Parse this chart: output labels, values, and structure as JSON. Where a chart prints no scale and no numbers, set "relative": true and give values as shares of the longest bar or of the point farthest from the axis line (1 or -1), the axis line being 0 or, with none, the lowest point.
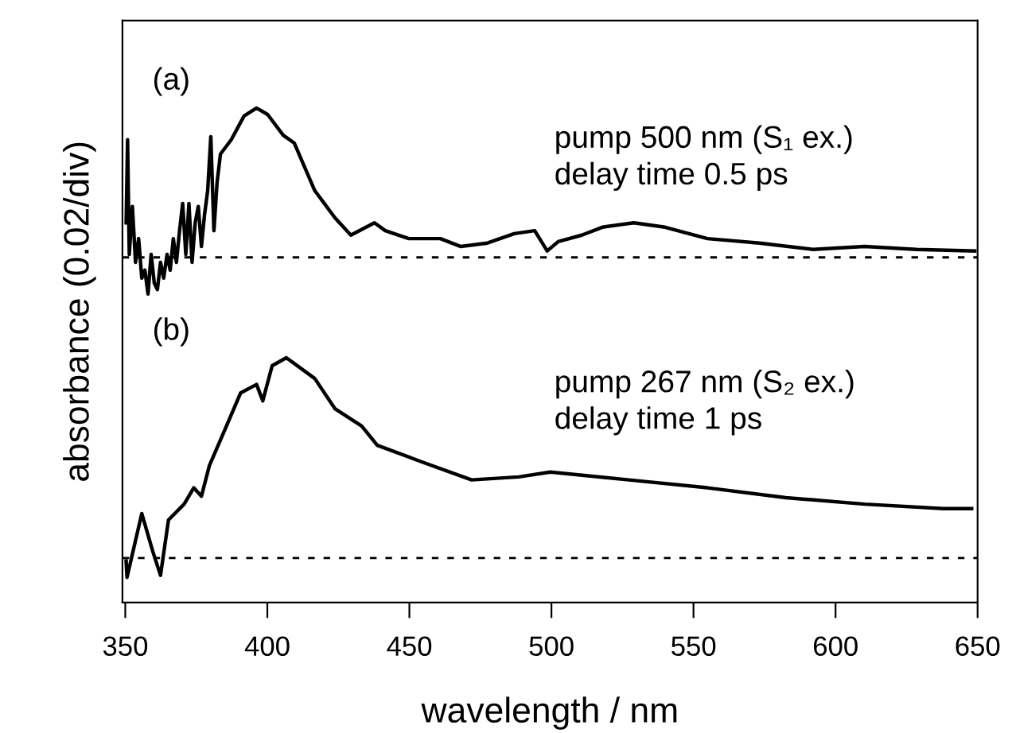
{
  "chart_data": {
    "type": "line",
    "relative": true,
    "xlabel": "wavelength / nm",
    "ylabel": "absorbance (0.02/div)",
    "xlim": [
      349,
      650
    ],
    "xticks": [
      350,
      400,
      450,
      500,
      550,
      600,
      650
    ],
    "annotations": [
      "(a)",
      "pump 500 nm (S₁ ex.)\ndelay time 0.5 ps",
      "(b)",
      "pump 267 nm (S₂ ex.)\ndelay time 1 ps"
    ],
    "ref_lines": [
      {
        "axis": "y",
        "value": 0.698,
        "line_style": "dashed",
        "color": "#000000"
      },
      {
        "axis": "y",
        "value": 0.09,
        "line_style": "dashed",
        "color": "#000000"
      }
    ],
    "series": [
      {
        "color": "#000000",
        "x": [
          350.3,
          350.8,
          351.4,
          352.5,
          353.6,
          354.7,
          355.8,
          356.9,
          358.0,
          359.1,
          360.2,
          361.3,
          362.4,
          363.5,
          364.7,
          365.8,
          366.9,
          368.0,
          369.1,
          370.2,
          371.3,
          372.4,
          373.5,
          374.6,
          375.7,
          376.8,
          377.9,
          379.0,
          380.1,
          381.2,
          382.3,
          383.5,
          387.3,
          391.8,
          396.2,
          400.1,
          405.6,
          409.5,
          416.7,
          423.8,
          429.4,
          437.7,
          441.5,
          449.8,
          460.9,
          468.1,
          477.5,
          486.9,
          494.1,
          498.5,
          502.4,
          510.7,
          517.9,
          529.0,
          540.0,
          554.9,
          573.2,
          592.0,
          610.2,
          628.5,
          649.0
        ],
        "values": [
          0.768,
          0.936,
          0.704,
          0.801,
          0.688,
          0.736,
          0.656,
          0.672,
          0.624,
          0.704,
          0.646,
          0.633,
          0.688,
          0.656,
          0.704,
          0.672,
          0.736,
          0.688,
          0.752,
          0.807,
          0.704,
          0.807,
          0.688,
          0.768,
          0.801,
          0.72,
          0.785,
          0.833,
          0.942,
          0.752,
          0.849,
          0.907,
          0.936,
          0.984,
          1,
          0.987,
          0.945,
          0.929,
          0.833,
          0.778,
          0.743,
          0.768,
          0.752,
          0.736,
          0.736,
          0.72,
          0.727,
          0.746,
          0.752,
          0.711,
          0.73,
          0.743,
          0.759,
          0.768,
          0.759,
          0.736,
          0.727,
          0.714,
          0.72,
          0.714,
          0.711
        ]
      },
      {
        "color": "#000000",
        "x": [
          350.3,
          350.6,
          355.8,
          359.7,
          362.4,
          365.2,
          370.7,
          374.1,
          376.8,
          379.6,
          385.1,
          390.6,
          396.2,
          398.4,
          401.7,
          406.7,
          416.7,
          423.8,
          433.2,
          438.7,
          453.6,
          471.9,
          488.5,
          499.6,
          527.2,
          554.9,
          582.5,
          610.2,
          637.9,
          647.9
        ],
        "values": [
          0.084,
          0.051,
          0.18,
          0.103,
          0.055,
          0.167,
          0.199,
          0.232,
          0.215,
          0.277,
          0.35,
          0.424,
          0.441,
          0.408,
          0.479,
          0.495,
          0.453,
          0.392,
          0.357,
          0.318,
          0.286,
          0.248,
          0.254,
          0.264,
          0.248,
          0.232,
          0.212,
          0.199,
          0.19,
          0.19
        ]
      }
    ]
  }
}
